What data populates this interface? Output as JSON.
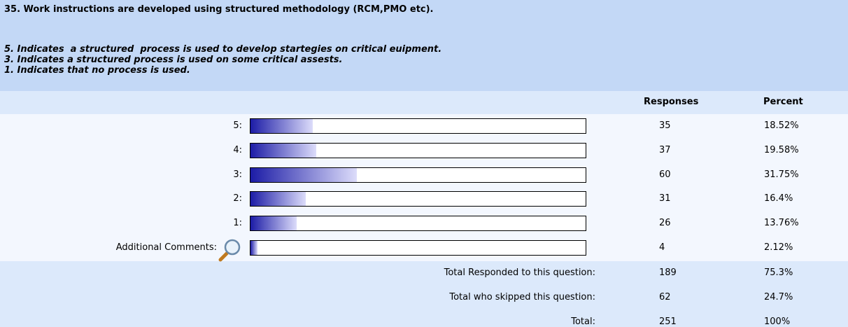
{
  "question": "35. Work instructions are developed using structured methodology (RCM,PMO etc).",
  "notes": [
    "5. Indicates  a structured  process is used to develop startegies on critical euipment.",
    "3. Indicates a structured process is used on some critical assests.",
    "1. Indicates that no process is used."
  ],
  "columns": [
    "Responses",
    "Percent"
  ],
  "rows": [
    {
      "label": "5:",
      "responses": 35,
      "percent": 18.52,
      "percent_label": "18.52%"
    },
    {
      "label": "4:",
      "responses": 37,
      "percent": 19.58,
      "percent_label": "19.58%"
    },
    {
      "label": "3:",
      "responses": 60,
      "percent": 31.75,
      "percent_label": "31.75%"
    },
    {
      "label": "2:",
      "responses": 31,
      "percent": 16.4,
      "percent_label": "16.4%"
    },
    {
      "label": "1:",
      "responses": 26,
      "percent": 13.76,
      "percent_label": "13.76%"
    },
    {
      "label": "Additional Comments:",
      "responses": 4,
      "percent": 2.12,
      "percent_label": "2.12%"
    }
  ],
  "totals": [
    {
      "label": "Total Responded to this question:",
      "responses": 189,
      "percent_label": "75.3%"
    },
    {
      "label": "Total who skipped this question:",
      "responses": 62,
      "percent_label": "24.7%"
    },
    {
      "label": "Total:",
      "responses": 251,
      "percent_label": "100%"
    }
  ]
}
